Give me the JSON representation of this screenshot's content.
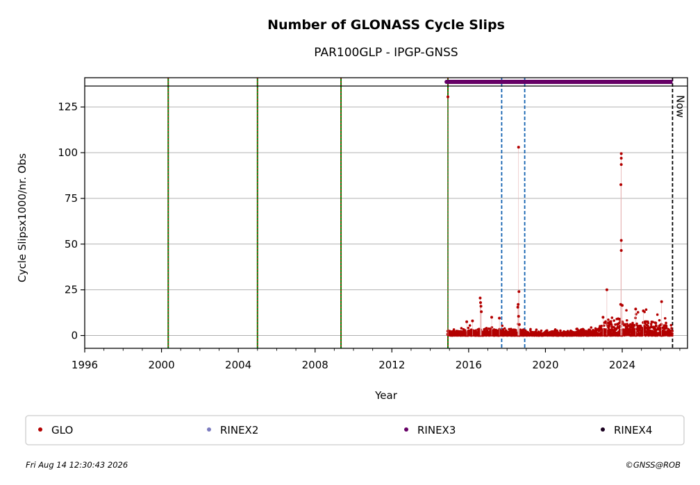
{
  "chart_data": {
    "type": "scatter",
    "title": "Number of GLONASS Cycle Slips",
    "subtitle": "PAR100GLP - IPGP-GNSS",
    "xlabel": "Year",
    "ylabel": "Cycle Slipsx1000/nr. Obs",
    "xlim": [
      1996,
      2027.4
    ],
    "ylim": [
      -7,
      141
    ],
    "x_ticks": [
      1996,
      2000,
      2004,
      2008,
      2012,
      2016,
      2020,
      2024
    ],
    "y_ticks": [
      0,
      25,
      50,
      75,
      100,
      125
    ],
    "grid": "horizontal",
    "now_label": "Now",
    "now_year": 2026.62,
    "equipment_change_lines": [
      2000.35,
      2005.0,
      2009.35,
      2014.92
    ],
    "other_event_lines": [
      2017.72,
      2018.92
    ],
    "rinex3_bar": {
      "start": 2014.85,
      "end": 2026.62
    },
    "series": [
      {
        "name": "GLO",
        "color": "#b30000",
        "range": [
          2014.9,
          2026.62
        ],
        "outliers": [
          {
            "x": 2014.92,
            "y": 130.5
          },
          {
            "x": 2016.6,
            "y": 20.5
          },
          {
            "x": 2016.62,
            "y": 18
          },
          {
            "x": 2016.64,
            "y": 16
          },
          {
            "x": 2016.66,
            "y": 13
          },
          {
            "x": 2016.2,
            "y": 8
          },
          {
            "x": 2015.9,
            "y": 7.5
          },
          {
            "x": 2017.2,
            "y": 10
          },
          {
            "x": 2017.6,
            "y": 9.5
          },
          {
            "x": 2018.6,
            "y": 103
          },
          {
            "x": 2018.62,
            "y": 24
          },
          {
            "x": 2018.58,
            "y": 17
          },
          {
            "x": 2018.56,
            "y": 15.5
          },
          {
            "x": 2018.6,
            "y": 10.5
          },
          {
            "x": 2018.64,
            "y": 6
          },
          {
            "x": 2023.2,
            "y": 25
          },
          {
            "x": 2023.0,
            "y": 10
          },
          {
            "x": 2023.95,
            "y": 99.5
          },
          {
            "x": 2023.95,
            "y": 97
          },
          {
            "x": 2023.95,
            "y": 93.5
          },
          {
            "x": 2023.93,
            "y": 82.5
          },
          {
            "x": 2023.95,
            "y": 52
          },
          {
            "x": 2023.95,
            "y": 46.5
          },
          {
            "x": 2023.92,
            "y": 17
          },
          {
            "x": 2024.0,
            "y": 16.5
          },
          {
            "x": 2024.7,
            "y": 14.5
          },
          {
            "x": 2025.1,
            "y": 13.5
          },
          {
            "x": 2026.05,
            "y": 18.5
          }
        ]
      },
      {
        "name": "RINEX2",
        "color": "#7b7bbf"
      },
      {
        "name": "RINEX3",
        "color": "#660066"
      },
      {
        "name": "RINEX4",
        "color": "#1a0020"
      }
    ]
  },
  "footer": {
    "timestamp": "Fri Aug 14 12:30:43 2026",
    "credit": "©GNSS@ROB"
  }
}
